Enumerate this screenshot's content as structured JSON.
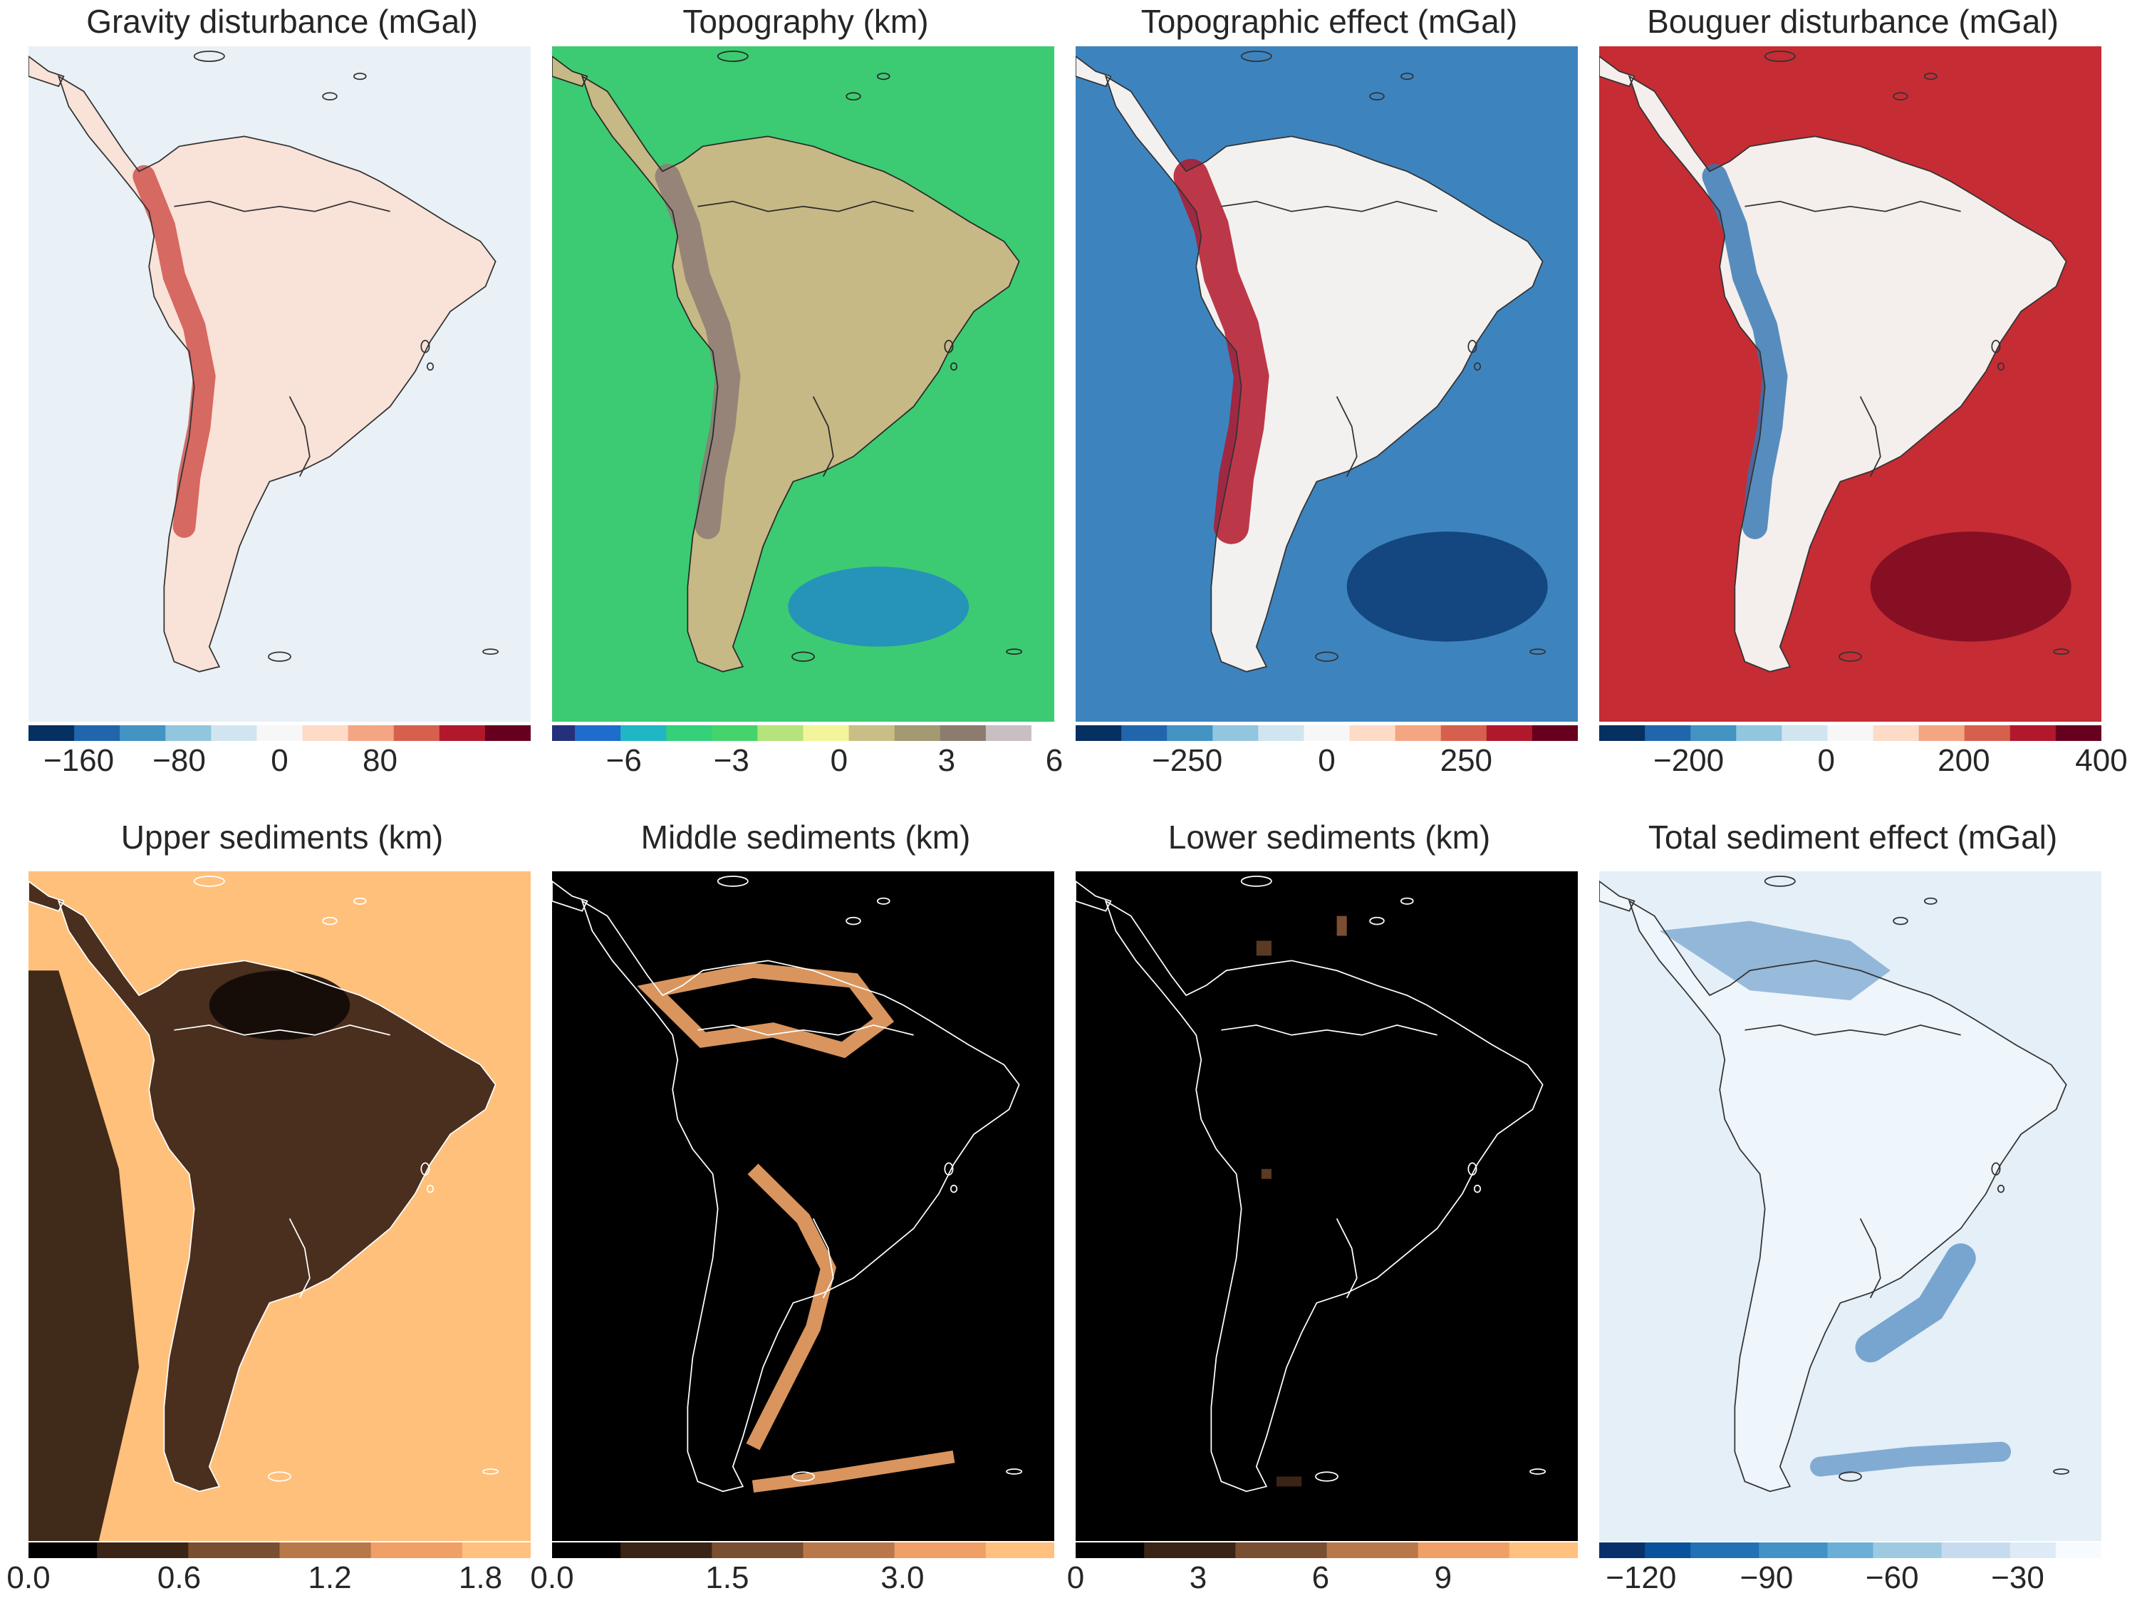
{
  "panels": [
    {
      "title": "Gravity disturbance (mGal)",
      "colormap": [
        "#053061",
        "#2166ac",
        "#4393c3",
        "#92c5de",
        "#d1e5f0",
        "#f7f7f7",
        "#fddbc7",
        "#f4a582",
        "#d6604d",
        "#b2182b",
        "#67001f"
      ],
      "ocean": "#e9f1f7",
      "land_fill": "#f9e2d8",
      "feature": "#c9403a",
      "coast": "#333333",
      "range": [
        -200,
        200
      ],
      "ticks": [
        {
          "value": -160,
          "label": "−160"
        },
        {
          "value": -80,
          "label": "−80"
        },
        {
          "value": 0,
          "label": "0"
        },
        {
          "value": 80,
          "label": "80"
        }
      ]
    },
    {
      "title": "Topography (km)",
      "colormap": [
        "#25307a",
        "#1f6ccf",
        "#20b6c4",
        "#34d07a",
        "#45d36b",
        "#b6e37c",
        "#f3f59a",
        "#c9bf86",
        "#a39a73",
        "#8c7c6e",
        "#c9bfc2",
        "#ffffff"
      ],
      "ocean": "#3ccb72",
      "land_fill": "#c6b985",
      "feature": "#8e7a76",
      "coast": "#2a2a2a",
      "range": [
        -8,
        6
      ],
      "ticks": [
        {
          "value": -6,
          "label": "−6"
        },
        {
          "value": -3,
          "label": "−3"
        },
        {
          "value": 0,
          "label": "0"
        },
        {
          "value": 3,
          "label": "3"
        },
        {
          "value": 6,
          "label": "6"
        }
      ]
    },
    {
      "title": "Topographic effect (mGal)",
      "colormap": [
        "#053061",
        "#2166ac",
        "#4393c3",
        "#92c5de",
        "#d1e5f0",
        "#f7f7f7",
        "#fddbc7",
        "#f4a582",
        "#d6604d",
        "#b2182b",
        "#67001f"
      ],
      "ocean": "#3d84bf",
      "land_fill": "#f3f1f0",
      "feature": "#b2182b",
      "coast": "#333333",
      "range": [
        -450,
        450
      ],
      "ticks": [
        {
          "value": -250,
          "label": "−250"
        },
        {
          "value": 0,
          "label": "0"
        },
        {
          "value": 250,
          "label": "250"
        }
      ]
    },
    {
      "title": "Bouguer disturbance (mGal)",
      "colormap": [
        "#053061",
        "#2166ac",
        "#4393c3",
        "#92c5de",
        "#d1e5f0",
        "#f7f7f7",
        "#fddbc7",
        "#f4a582",
        "#d6604d",
        "#b2182b",
        "#67001f"
      ],
      "ocean": "#c62c34",
      "land_fill": "#f4eeec",
      "feature": "#2f74b3",
      "coast": "#333333",
      "range": [
        -330,
        400
      ],
      "ticks": [
        {
          "value": -200,
          "label": "−200"
        },
        {
          "value": 0,
          "label": "0"
        },
        {
          "value": 200,
          "label": "200"
        },
        {
          "value": 400,
          "label": "400"
        }
      ]
    },
    {
      "title": "Upper sediments (km)",
      "colormap": [
        "#000000",
        "#3a2416",
        "#7a4e30",
        "#b9784a",
        "#f0a066",
        "#ffc17d"
      ],
      "ocean": "#ffc07c",
      "land_fill": "#4a2f1e",
      "feature": "#120a05",
      "coast": "#ffffff",
      "range": [
        0,
        2.0
      ],
      "ticks": [
        {
          "value": 0,
          "label": "0.0"
        },
        {
          "value": 0.6,
          "label": "0.6"
        },
        {
          "value": 1.2,
          "label": "1.2"
        },
        {
          "value": 1.8,
          "label": "1.8"
        }
      ]
    },
    {
      "title": "Middle sediments (km)",
      "colormap": [
        "#000000",
        "#3a2416",
        "#7a4e30",
        "#b9784a",
        "#f0a066",
        "#ffc17d"
      ],
      "ocean": "#000000",
      "land_fill": "#000000",
      "feature": "#f1a567",
      "coast": "#ffffff",
      "range": [
        0,
        4.3
      ],
      "ticks": [
        {
          "value": 0,
          "label": "0.0"
        },
        {
          "value": 1.5,
          "label": "1.5"
        },
        {
          "value": 3.0,
          "label": "3.0"
        }
      ]
    },
    {
      "title": "Lower sediments (km)",
      "colormap": [
        "#000000",
        "#3a2416",
        "#7a4e30",
        "#b9784a",
        "#f0a066",
        "#ffc17d"
      ],
      "ocean": "#000000",
      "land_fill": "#000000",
      "feature": "#5a3a22",
      "coast": "#ffffff",
      "range": [
        0,
        12.3
      ],
      "ticks": [
        {
          "value": 0,
          "label": "0"
        },
        {
          "value": 3,
          "label": "3"
        },
        {
          "value": 6,
          "label": "6"
        },
        {
          "value": 9,
          "label": "9"
        }
      ]
    },
    {
      "title": "Total sediment effect (mGal)",
      "colormap": [
        "#08306b",
        "#08519c",
        "#2171b5",
        "#4292c6",
        "#6baed6",
        "#9ecae1",
        "#c6dbef",
        "#deebf7",
        "#f7fbff"
      ],
      "ocean": "#e4eff8",
      "land_fill": "#eef5fb",
      "feature": "#2f73b4",
      "coast": "#333333",
      "range": [
        -130,
        -10
      ],
      "ticks": [
        {
          "value": -120,
          "label": "−120"
        },
        {
          "value": -90,
          "label": "−90"
        },
        {
          "value": -60,
          "label": "−60"
        },
        {
          "value": -30,
          "label": "−30"
        }
      ]
    }
  ]
}
